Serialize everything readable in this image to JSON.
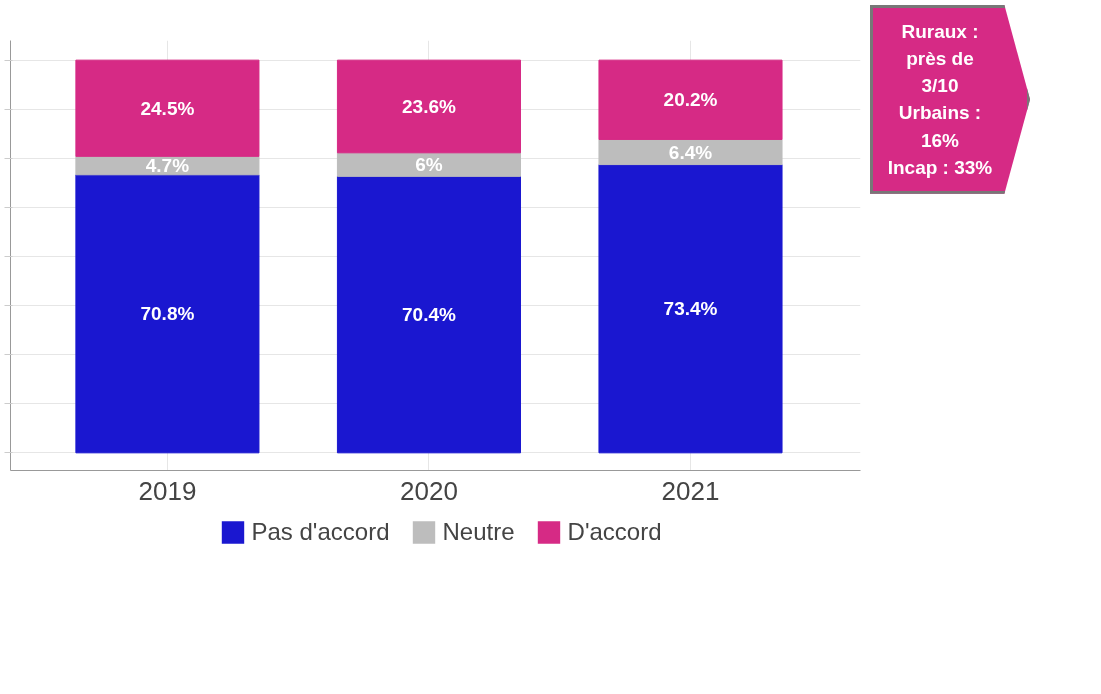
{
  "chart_data": {
    "type": "bar",
    "stacked": true,
    "categories": [
      "2019",
      "2020",
      "2021"
    ],
    "series": [
      {
        "name": "Pas d'accord",
        "color": "#1a17d0",
        "values": [
          70.8,
          70.4,
          73.4
        ],
        "value_labels": [
          "70.8%",
          "70.4%",
          "73.4%"
        ]
      },
      {
        "name": "Neutre",
        "color": "#bdbdbd",
        "values": [
          4.7,
          6,
          6.4
        ],
        "value_labels": [
          "4.7%",
          "6%",
          "6.4%"
        ]
      },
      {
        "name": "D'accord",
        "color": "#d62a85",
        "values": [
          24.5,
          23.6,
          20.2
        ],
        "value_labels": [
          "24.5%",
          "23.6%",
          "20.2%"
        ]
      }
    ],
    "tick_labels": "x",
    "grid": true,
    "legend": "bottom",
    "annotations": [
      "Ruraux :\nprès de 3/10\nUrbains : 16%\nIncap : 33%"
    ]
  }
}
